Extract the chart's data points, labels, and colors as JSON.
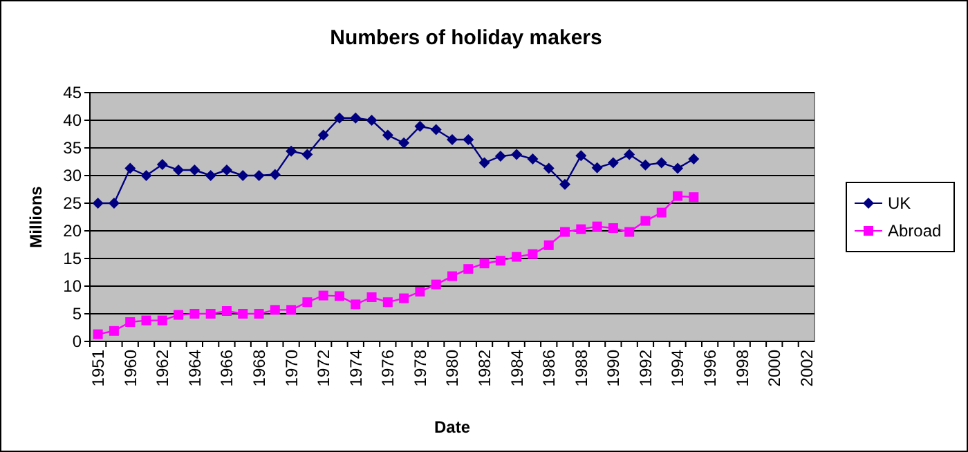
{
  "chart_data": {
    "type": "line",
    "title": "Numbers of holiday makers",
    "xlabel": "Date",
    "ylabel": "Millions",
    "categories": [
      "1951",
      null,
      "1960",
      null,
      "1962",
      null,
      "1964",
      null,
      "1966",
      null,
      "1968",
      null,
      "1970",
      null,
      "1972",
      null,
      "1974",
      null,
      "1976",
      null,
      "1978",
      null,
      "1980",
      null,
      "1982",
      null,
      "1984",
      null,
      "1986",
      null,
      "1988",
      null,
      "1990",
      null,
      "1992",
      null,
      "1994",
      null,
      "1996",
      null,
      "1998",
      null,
      "2000",
      null,
      "2002"
    ],
    "series": [
      {
        "name": "UK",
        "color": "#000080",
        "marker": "diamond",
        "values": [
          25,
          25,
          31.3,
          30,
          32,
          31,
          31,
          30,
          31,
          30,
          30,
          30.2,
          34.4,
          33.8,
          37.3,
          40.4,
          40.4,
          40,
          37.3,
          35.9,
          38.9,
          38.3,
          36.5,
          36.5,
          32.3,
          33.5,
          33.8,
          33,
          31.3,
          28.4,
          33.6,
          31.4,
          32.3,
          33.8,
          31.9,
          32.3,
          31.3,
          33,
          null,
          null,
          null,
          null,
          null,
          null,
          null
        ]
      },
      {
        "name": "Abroad",
        "color": "#ff00ff",
        "marker": "square",
        "values": [
          1.3,
          1.9,
          3.5,
          3.8,
          3.8,
          4.8,
          5,
          5,
          5.5,
          5,
          5,
          5.7,
          5.7,
          7.1,
          8.3,
          8.2,
          6.7,
          8,
          7.1,
          7.8,
          9,
          10.3,
          11.8,
          13.1,
          14.1,
          14.6,
          15.3,
          15.8,
          17.4,
          19.8,
          20.3,
          20.8,
          20.5,
          19.8,
          21.8,
          23.3,
          26.3,
          26.1,
          null,
          null,
          null,
          null,
          null,
          null,
          null
        ]
      }
    ],
    "ylim": [
      0,
      45
    ],
    "yticks": [
      0,
      5,
      10,
      15,
      20,
      25,
      30,
      35,
      40,
      45
    ],
    "grid": "y",
    "legend": "right"
  }
}
